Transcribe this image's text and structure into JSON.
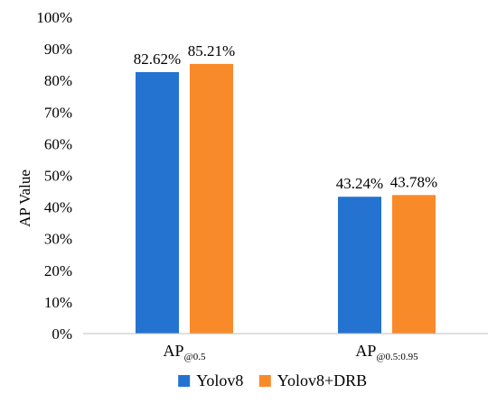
{
  "chart_data": {
    "type": "bar",
    "ylabel": "AP Value",
    "ylim": [
      0,
      100
    ],
    "yticks": [
      "0%",
      "10%",
      "20%",
      "30%",
      "40%",
      "50%",
      "60%",
      "70%",
      "80%",
      "90%",
      "100%"
    ],
    "categories": [
      {
        "main": "AP",
        "sub": "@0.5"
      },
      {
        "main": "AP",
        "sub": "@0.5:0.95"
      }
    ],
    "series": [
      {
        "name": "Yolov8",
        "color": "#2473D1",
        "values": [
          82.62,
          43.24
        ],
        "labels": [
          "82.62%",
          "43.24%"
        ]
      },
      {
        "name": "Yolov8+DRB",
        "color": "#F98A2A",
        "values": [
          85.21,
          43.78
        ],
        "labels": [
          "85.21%",
          "43.78%"
        ]
      }
    ],
    "grid": false,
    "legend_position": "bottom"
  }
}
